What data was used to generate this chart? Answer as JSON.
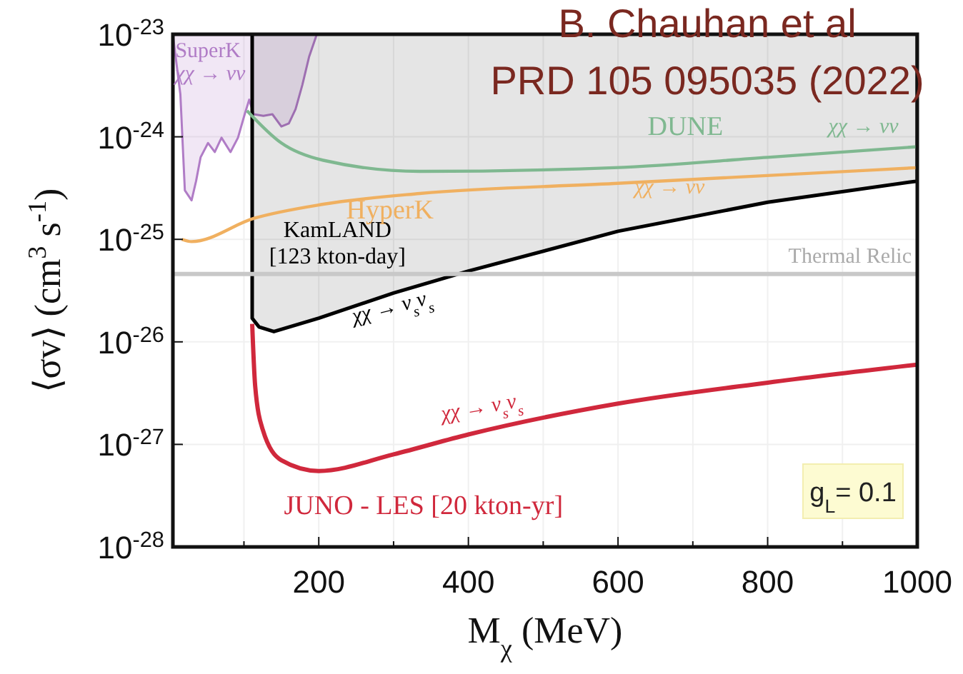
{
  "chart_data": {
    "type": "line",
    "title": "B. Chauhan et al",
    "subtitle": "PRD 105 095035 (2022)",
    "xlabel": "M$_{χ}$ (MeV)",
    "ylabel": "⟨σv⟩ (cm$^{3}$ s$^{-1}$)",
    "log": "y",
    "grid": true,
    "xlim": [
      5,
      1000
    ],
    "ylim": [
      1e-28,
      1e-23
    ],
    "xticks": [
      {
        "value": 100,
        "label": null
      },
      200,
      {
        "value": 300,
        "label": null
      },
      400,
      {
        "value": 500,
        "label": null
      },
      600,
      {
        "value": 700,
        "label": null
      },
      800,
      {
        "value": 900,
        "label": null
      },
      1000
    ],
    "yticks": [
      {
        "value": 1e-28,
        "label": "10$^{-28}$"
      },
      {
        "value": 1e-27,
        "label": "10$^{-27}$"
      },
      {
        "value": 1e-26,
        "label": "10$^{-26}$"
      },
      {
        "value": 1e-25,
        "label": "10$^{-25}$"
      },
      {
        "value": 1e-24,
        "label": "10$^{-24}$"
      },
      {
        "value": 1e-23,
        "label": "10$^{-23}$"
      }
    ],
    "series": [
      {
        "type": "area",
        "name": "SuperK",
        "color": "#b07cc6",
        "x": [
          5,
          15,
          21,
          30,
          36,
          42,
          52,
          61,
          70,
          82,
          92,
          101,
          107,
          113,
          126,
          138,
          150,
          160,
          169,
          178,
          187,
          197
        ],
        "values": [
          9.8e-24,
          2.6e-24,
          3e-25,
          2.4e-25,
          3.7e-25,
          6.3e-25,
          8.7e-25,
          7.1e-25,
          9.8e-25,
          7.1e-25,
          9.8e-25,
          1.66e-24,
          2.3e-24,
          1.66e-24,
          1.6e-24,
          1.66e-24,
          1.26e-24,
          1.35e-24,
          1.86e-24,
          3.2e-24,
          6e-24,
          9.8e-24
        ]
      },
      {
        "type": "area",
        "name": "KamLAND [123 kton-day]",
        "color": "#000000",
        "x": [
          111,
          111,
          120,
          140,
          200,
          300,
          400,
          600,
          800,
          1000
        ],
        "values": [
          1e-23,
          1.7e-26,
          1.4e-26,
          1.26e-26,
          1.7e-26,
          3e-26,
          4.9e-26,
          1.2e-25,
          2.3e-25,
          3.7e-25
        ]
      },
      {
        "name": "DUNE",
        "color": "#7fb890",
        "x": [
          104,
          150,
          206,
          335,
          595,
          800,
          1000
        ],
        "values": [
          1.8e-24,
          8.7e-25,
          5.9e-25,
          4.6e-25,
          5e-25,
          6.3e-25,
          8e-25
        ]
      },
      {
        "name": "HyperK",
        "color": "#f0b060",
        "x": [
          17,
          30,
          113,
          206,
          335,
          595,
          1000
        ],
        "values": [
          1e-25,
          9.5e-26,
          1.6e-25,
          2.2e-25,
          2.8e-25,
          3.5e-25,
          5e-25
        ]
      },
      {
        "name": "JUNO - LES [20 kton-yr]",
        "color": "#d0283c",
        "x": [
          111,
          115,
          125,
          150,
          200,
          300,
          400,
          600,
          800,
          1000
        ],
        "values": [
          1.5e-26,
          3.7e-27,
          1.4e-27,
          7e-28,
          5.5e-28,
          8e-28,
          1.25e-27,
          2.5e-27,
          4e-27,
          6e-27
        ]
      }
    ],
    "ref_lines": [
      {
        "axis": "y",
        "value": 4.6e-26,
        "label": "Thermal Relic",
        "color": "#c8c8c8"
      }
    ],
    "annotations": [
      "χχ → νν",
      "χχ → νν",
      "χχ → νν",
      "χχ → ν$_{s}$ν$_{s}$",
      "χχ → ν$_{s}$ν$_{s}$",
      "g$_{L}$= 0.1"
    ]
  }
}
